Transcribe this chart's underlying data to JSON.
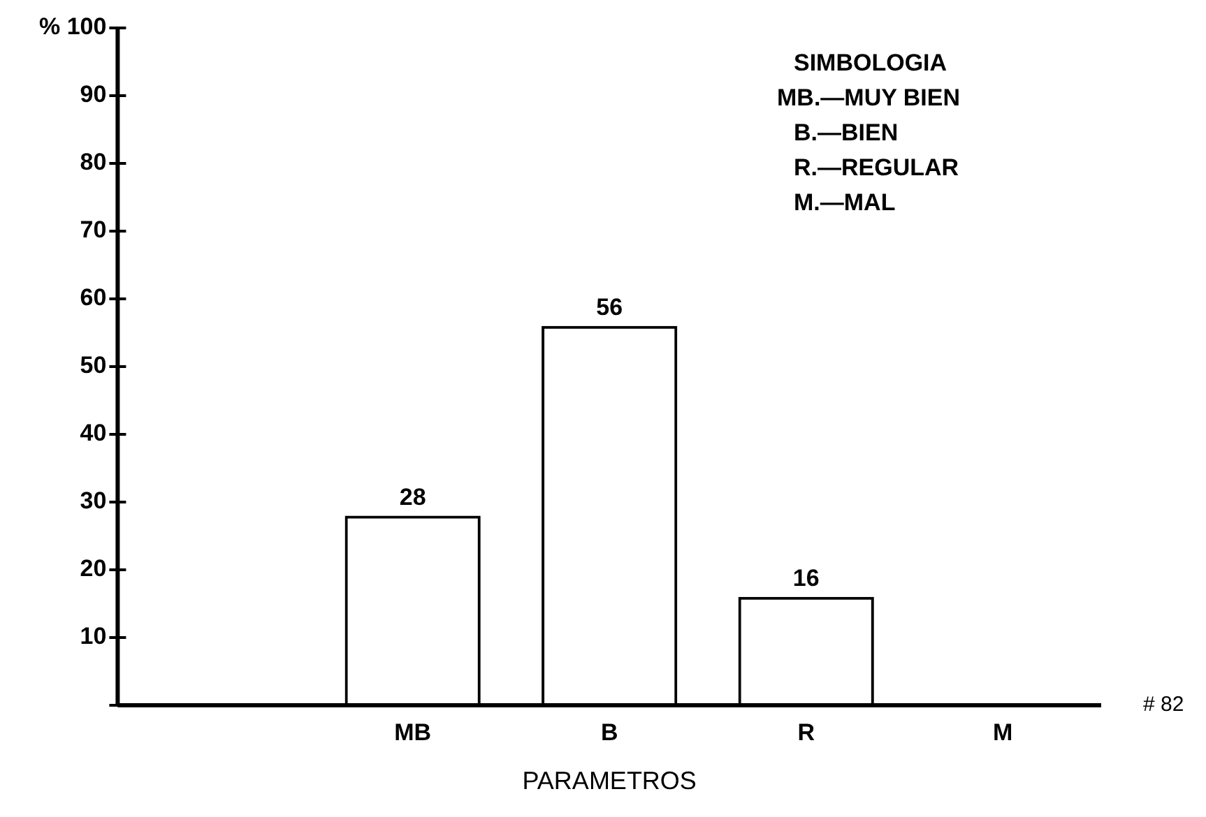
{
  "chart_data": {
    "type": "bar",
    "xlabel": "PARAMETROS",
    "categories": [
      null,
      "MB",
      "B",
      "R",
      "M"
    ],
    "values": [
      null,
      28,
      56,
      16,
      0
    ],
    "value_labels": [
      null,
      "28",
      "56",
      "16",
      null
    ],
    "color": "#000000",
    "ylim": [
      0,
      100
    ],
    "yticks": [
      {
        "value": 0,
        "label": null
      },
      10,
      20,
      30,
      40,
      50,
      60,
      70,
      80,
      90,
      {
        "value": 100,
        "label": "% 100"
      }
    ],
    "grid": false,
    "legend": false,
    "annotations": [
      "SIMBOLOGIA",
      "MB.—MUY BIEN",
      "B.—BIEN",
      "R.—REGULAR",
      "M.—MAL",
      "# 82"
    ]
  }
}
